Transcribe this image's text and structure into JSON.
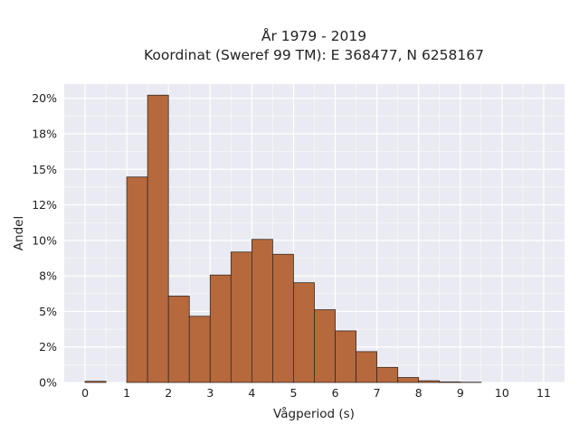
{
  "chart_data": {
    "type": "bar",
    "title_line1": "År 1979 - 2019",
    "title_line2": "Koordinat (Sweref 99 TM): E 368477, N 6258167",
    "xlabel": "Vågperiod (s)",
    "ylabel": "Andel",
    "x_ticks": [
      "0",
      "1",
      "2",
      "3",
      "4",
      "5",
      "6",
      "7",
      "8",
      "9",
      "10",
      "11"
    ],
    "y_ticks": [
      "0%",
      "2%",
      "5%",
      "8%",
      "10%",
      "12%",
      "15%",
      "18%",
      "20%"
    ],
    "y_tick_values": [
      0,
      0.025,
      0.05,
      0.075,
      0.1,
      0.125,
      0.15,
      0.175,
      0.2
    ],
    "xlim": [
      -0.5,
      11.5
    ],
    "ylim": [
      0,
      0.21
    ],
    "bin_width": 0.5,
    "bin_edges_start": [
      0,
      1,
      1.5,
      2,
      2.5,
      3,
      3.5,
      4,
      4.5,
      5,
      5.5,
      6,
      6.5,
      7,
      7.5,
      8,
      8.5,
      9
    ],
    "values": [
      0.0008,
      0.1446,
      0.2022,
      0.0608,
      0.0466,
      0.0756,
      0.0918,
      0.1007,
      0.0902,
      0.0702,
      0.0512,
      0.0363,
      0.0217,
      0.0106,
      0.0035,
      0.0012,
      0.0004,
      0.0002
    ],
    "grid": true,
    "bar_color": "#b5693d",
    "bar_edge_color": "#3a2a20",
    "background_color": "#eaeaf2",
    "grid_color": "#ffffff"
  }
}
